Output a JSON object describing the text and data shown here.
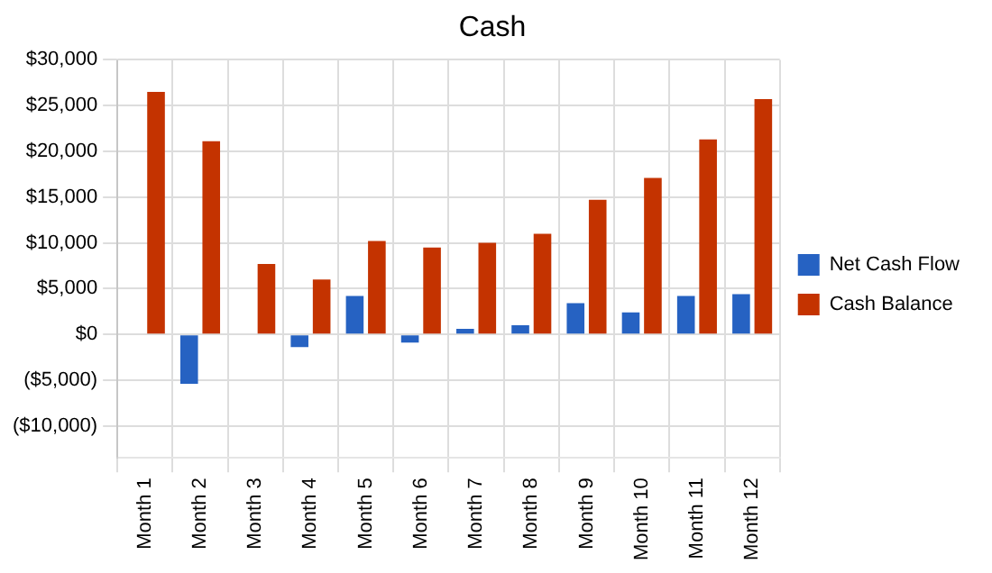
{
  "chart_data": {
    "type": "bar",
    "title": "Cash",
    "categories": [
      "Month 1",
      "Month 2",
      "Month 3",
      "Month 4",
      "Month 5",
      "Month 6",
      "Month 7",
      "Month 8",
      "Month 9",
      "Month 10",
      "Month 11",
      "Month 12"
    ],
    "series": [
      {
        "name": "Net Cash Flow",
        "color": "#2662c2",
        "values": [
          null,
          -5400,
          null,
          -1400,
          4200,
          -900,
          600,
          1000,
          3400,
          2400,
          4200,
          4400
        ]
      },
      {
        "name": "Cash Balance",
        "color": "#c43300",
        "values": [
          26500,
          21100,
          7700,
          6000,
          10200,
          9500,
          10000,
          11000,
          14700,
          17100,
          21300,
          25700
        ]
      }
    ],
    "ylim": [
      -13500,
      30000
    ],
    "yticks": [
      {
        "value": -10000,
        "label": "($10,000)"
      },
      {
        "value": -5000,
        "label": "($5,000)"
      },
      {
        "value": 0,
        "label": "$0"
      },
      {
        "value": 5000,
        "label": "$5,000"
      },
      {
        "value": 10000,
        "label": "$10,000"
      },
      {
        "value": 15000,
        "label": "$15,000"
      },
      {
        "value": 20000,
        "label": "$20,000"
      },
      {
        "value": 25000,
        "label": "$25,000"
      },
      {
        "value": 30000,
        "label": "$30,000"
      }
    ],
    "grid": true,
    "legend": "right"
  }
}
